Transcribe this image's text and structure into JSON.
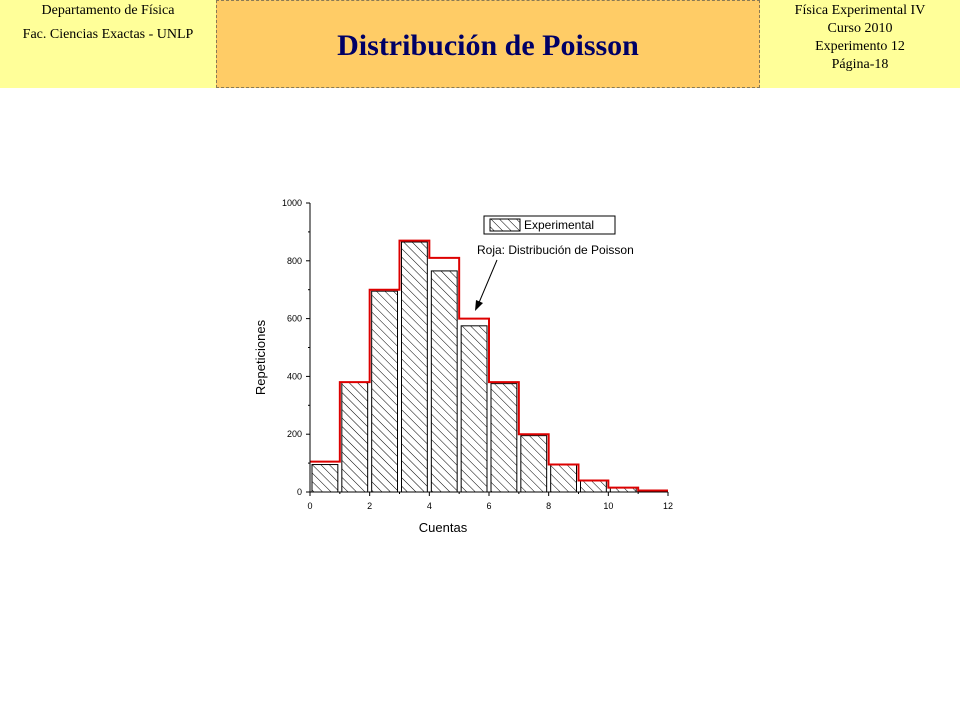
{
  "header": {
    "left_line1": "Departamento de Física",
    "left_line2": "Fac. Ciencias Exactas - UNLP",
    "title": "Distribución de Poisson",
    "right_line1": "Física Experimental IV",
    "right_line2": "Curso 2010",
    "right_line3": "Experimento 12",
    "right_line4": "Página-18"
  },
  "colors": {
    "header_side_bg": "#ffff99",
    "header_center_bg": "#ffcc66",
    "title_color": "#000066",
    "poisson_line": "#dd0000"
  },
  "chart_data": {
    "type": "bar",
    "xlabel": "Cuentas",
    "ylabel": "Repeticiones",
    "xlim": [
      0,
      12
    ],
    "ylim": [
      0,
      1000
    ],
    "x_ticks": [
      0,
      2,
      4,
      6,
      8,
      10,
      12
    ],
    "y_ticks": [
      0,
      200,
      400,
      600,
      800,
      1000
    ],
    "legend": {
      "entry": "Experimental",
      "annotation": "Roja: Distribución de Poisson",
      "placement": "top-right"
    },
    "series": [
      {
        "name": "Experimental",
        "style": "hatched-bars",
        "x": [
          0,
          1,
          2,
          3,
          4,
          5,
          6,
          7,
          8,
          9,
          10,
          11
        ],
        "values": [
          95,
          380,
          695,
          865,
          765,
          575,
          375,
          195,
          95,
          40,
          15,
          5
        ]
      },
      {
        "name": "Roja: Distribución de Poisson",
        "style": "red-step",
        "x": [
          0,
          1,
          2,
          3,
          4,
          5,
          6,
          7,
          8,
          9,
          10,
          11
        ],
        "values": [
          105,
          380,
          700,
          870,
          810,
          600,
          380,
          200,
          95,
          40,
          15,
          5
        ]
      }
    ]
  }
}
